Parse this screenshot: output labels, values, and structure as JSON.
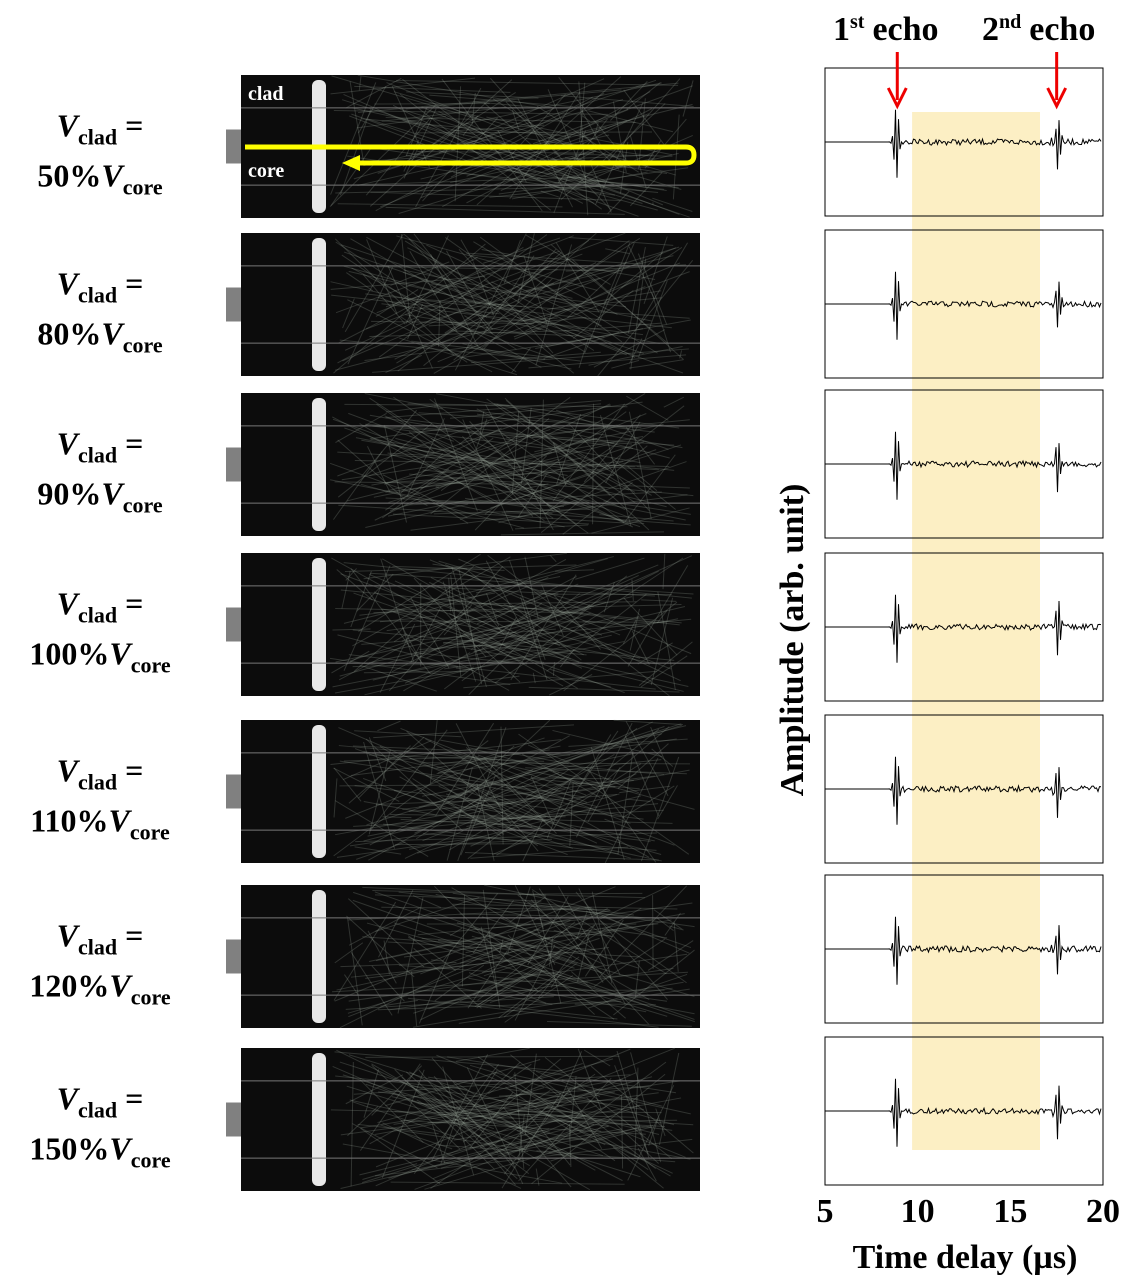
{
  "label_parts": {
    "symbol": "V",
    "clad": "clad",
    "equals": "=",
    "core": "core"
  },
  "rows": [
    {
      "percent": "50%"
    },
    {
      "percent": "80%"
    },
    {
      "percent": "90%"
    },
    {
      "percent": "100%"
    },
    {
      "percent": "110%"
    },
    {
      "percent": "120%"
    },
    {
      "percent": "150%"
    }
  ],
  "image_labels": {
    "clad": "clad",
    "core": "core"
  },
  "echoes": [
    {
      "number": "1",
      "suffix": "st",
      "word": "echo",
      "time": 8.9
    },
    {
      "number": "2",
      "suffix": "nd",
      "word": "echo",
      "time": 17.5
    }
  ],
  "highlight": [
    9.7,
    16.6
  ],
  "x_axis": {
    "label": "Time delay (µs)",
    "ticks": [
      5,
      10,
      15,
      20
    ],
    "range": [
      5,
      20
    ]
  },
  "y_axis": {
    "label": "Amplitude (arb. unit)"
  }
}
